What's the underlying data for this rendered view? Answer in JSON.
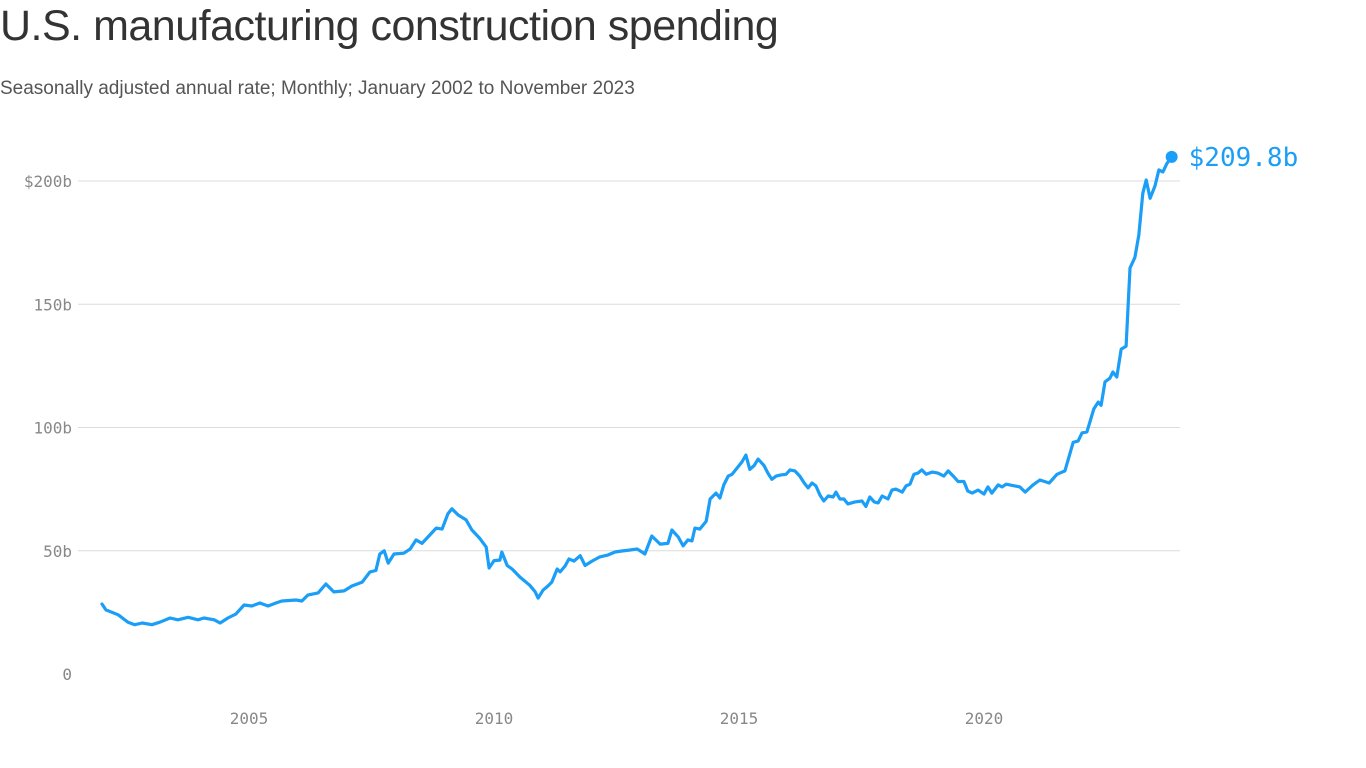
{
  "title": "U.S. manufacturing construction spending",
  "subtitle": "Seasonally adjusted annual rate; Monthly; January 2002 to November 2023",
  "chart_data": {
    "type": "line",
    "title": "U.S. manufacturing construction spending",
    "subtitle": "Seasonally adjusted annual rate; Monthly; January 2002 to November 2023",
    "xlabel": "",
    "ylabel": "",
    "xlim": [
      2002.0,
      2023.83
    ],
    "ylim": [
      0,
      200
    ],
    "grid": true,
    "color": "#1a9ef7",
    "y_ticks": [
      {
        "value": 0,
        "label": "0"
      },
      {
        "value": 50,
        "label": "50b"
      },
      {
        "value": 100,
        "label": "100b"
      },
      {
        "value": 150,
        "label": "150b"
      },
      {
        "value": 200,
        "label": "$200b"
      }
    ],
    "x_ticks": [
      {
        "value": 2005,
        "label": "2005"
      },
      {
        "value": 2010,
        "label": "2010"
      },
      {
        "value": 2015,
        "label": "2015"
      },
      {
        "value": 2020,
        "label": "2020"
      }
    ],
    "end_label": "$209.8b",
    "series": [
      {
        "points": [
          [
            2002.0,
            28.4
          ],
          [
            2002.08,
            26
          ],
          [
            2002.33,
            24
          ],
          [
            2002.53,
            21
          ],
          [
            2002.67,
            20
          ],
          [
            2002.82,
            20.7
          ],
          [
            2003.02,
            20
          ],
          [
            2003.18,
            21
          ],
          [
            2003.39,
            22.7
          ],
          [
            2003.55,
            22
          ],
          [
            2003.76,
            23
          ],
          [
            2003.96,
            22
          ],
          [
            2004.08,
            22.7
          ],
          [
            2004.29,
            22
          ],
          [
            2004.41,
            20.7
          ],
          [
            2004.57,
            22.7
          ],
          [
            2004.73,
            24.3
          ],
          [
            2004.9,
            28
          ],
          [
            2005.06,
            27.6
          ],
          [
            2005.22,
            28.8
          ],
          [
            2005.39,
            27.6
          ],
          [
            2005.55,
            28.8
          ],
          [
            2005.67,
            29.6
          ],
          [
            2005.96,
            30
          ],
          [
            2006.08,
            29.6
          ],
          [
            2006.2,
            32
          ],
          [
            2006.41,
            32.9
          ],
          [
            2006.57,
            36.5
          ],
          [
            2006.73,
            33.3
          ],
          [
            2006.94,
            33.7
          ],
          [
            2007.1,
            35.7
          ],
          [
            2007.31,
            37.3
          ],
          [
            2007.47,
            41.4
          ],
          [
            2007.59,
            42
          ],
          [
            2007.67,
            48.7
          ],
          [
            2007.76,
            50
          ],
          [
            2007.84,
            45
          ],
          [
            2007.96,
            48.7
          ],
          [
            2008.16,
            49
          ],
          [
            2008.29,
            50.7
          ],
          [
            2008.41,
            54.4
          ],
          [
            2008.53,
            53
          ],
          [
            2008.69,
            56.4
          ],
          [
            2008.82,
            59.2
          ],
          [
            2008.94,
            58.8
          ],
          [
            2009.06,
            65
          ],
          [
            2009.14,
            67
          ],
          [
            2009.27,
            64.5
          ],
          [
            2009.43,
            62.5
          ],
          [
            2009.55,
            58.4
          ],
          [
            2009.71,
            55
          ],
          [
            2009.84,
            51.5
          ],
          [
            2009.9,
            43
          ],
          [
            2010.0,
            46
          ],
          [
            2010.12,
            46.2
          ],
          [
            2010.16,
            49.5
          ],
          [
            2010.27,
            44
          ],
          [
            2010.37,
            42.6
          ],
          [
            2010.53,
            39.3
          ],
          [
            2010.73,
            36
          ],
          [
            2010.84,
            33.3
          ],
          [
            2010.9,
            30.8
          ],
          [
            2011.0,
            34
          ],
          [
            2011.1,
            35.7
          ],
          [
            2011.18,
            37.3
          ],
          [
            2011.29,
            42.6
          ],
          [
            2011.35,
            41.4
          ],
          [
            2011.45,
            43.8
          ],
          [
            2011.53,
            46.7
          ],
          [
            2011.63,
            45.8
          ],
          [
            2011.76,
            48
          ],
          [
            2011.86,
            44
          ],
          [
            2012.0,
            45.8
          ],
          [
            2012.16,
            47.5
          ],
          [
            2012.33,
            48.3
          ],
          [
            2012.47,
            49.5
          ],
          [
            2012.61,
            49.9
          ],
          [
            2012.78,
            50.3
          ],
          [
            2012.92,
            50.7
          ],
          [
            2013.02,
            49.5
          ],
          [
            2013.08,
            48.7
          ],
          [
            2013.22,
            56
          ],
          [
            2013.39,
            52.7
          ],
          [
            2013.55,
            53
          ],
          [
            2013.63,
            58.4
          ],
          [
            2013.76,
            55.6
          ],
          [
            2013.86,
            52
          ],
          [
            2013.96,
            54.4
          ],
          [
            2014.04,
            54
          ],
          [
            2014.1,
            59.2
          ],
          [
            2014.2,
            58.8
          ],
          [
            2014.33,
            62
          ],
          [
            2014.41,
            71
          ],
          [
            2014.53,
            73.4
          ],
          [
            2014.61,
            71.4
          ],
          [
            2014.69,
            76.7
          ],
          [
            2014.78,
            80.3
          ],
          [
            2014.86,
            81
          ],
          [
            2014.98,
            84
          ],
          [
            2015.06,
            86
          ],
          [
            2015.14,
            88.8
          ],
          [
            2015.22,
            83
          ],
          [
            2015.31,
            84.6
          ],
          [
            2015.39,
            87.2
          ],
          [
            2015.51,
            84.6
          ],
          [
            2015.59,
            81.5
          ],
          [
            2015.67,
            79
          ],
          [
            2015.76,
            80.3
          ],
          [
            2015.84,
            80.7
          ],
          [
            2015.96,
            81
          ],
          [
            2016.04,
            82.8
          ],
          [
            2016.14,
            82.4
          ],
          [
            2016.24,
            80.3
          ],
          [
            2016.33,
            77.5
          ],
          [
            2016.41,
            75.5
          ],
          [
            2016.49,
            77.5
          ],
          [
            2016.57,
            76.3
          ],
          [
            2016.65,
            72.6
          ],
          [
            2016.73,
            70.2
          ],
          [
            2016.82,
            72.2
          ],
          [
            2016.92,
            71.8
          ],
          [
            2016.98,
            73.8
          ],
          [
            2017.06,
            71
          ],
          [
            2017.14,
            71
          ],
          [
            2017.22,
            69
          ],
          [
            2017.37,
            69.8
          ],
          [
            2017.51,
            70.2
          ],
          [
            2017.59,
            68
          ],
          [
            2017.67,
            71.8
          ],
          [
            2017.76,
            69.8
          ],
          [
            2017.84,
            69.4
          ],
          [
            2017.92,
            72.2
          ],
          [
            2018.04,
            71
          ],
          [
            2018.12,
            74.6
          ],
          [
            2018.2,
            75
          ],
          [
            2018.33,
            73.8
          ],
          [
            2018.41,
            76.3
          ],
          [
            2018.49,
            77
          ],
          [
            2018.57,
            81
          ],
          [
            2018.65,
            81.5
          ],
          [
            2018.73,
            82.8
          ],
          [
            2018.82,
            81
          ],
          [
            2018.94,
            81.9
          ],
          [
            2019.06,
            81.5
          ],
          [
            2019.18,
            80.3
          ],
          [
            2019.27,
            82.4
          ],
          [
            2019.39,
            79.9
          ],
          [
            2019.47,
            78.1
          ],
          [
            2019.59,
            78.1
          ],
          [
            2019.67,
            74.2
          ],
          [
            2019.76,
            73.4
          ],
          [
            2019.88,
            74.6
          ],
          [
            2020.0,
            73
          ],
          [
            2020.08,
            75.9
          ],
          [
            2020.16,
            73.4
          ],
          [
            2020.29,
            76.7
          ],
          [
            2020.37,
            75.9
          ],
          [
            2020.45,
            77
          ],
          [
            2020.73,
            75.9
          ],
          [
            2020.84,
            73.8
          ],
          [
            2021.0,
            76.7
          ],
          [
            2021.14,
            78.7
          ],
          [
            2021.33,
            77.5
          ],
          [
            2021.49,
            81
          ],
          [
            2021.65,
            82.4
          ],
          [
            2021.82,
            94
          ],
          [
            2021.92,
            94.5
          ],
          [
            2022.0,
            97.8
          ],
          [
            2022.1,
            98.2
          ],
          [
            2022.24,
            107.5
          ],
          [
            2022.33,
            110.3
          ],
          [
            2022.39,
            109
          ],
          [
            2022.47,
            118.5
          ],
          [
            2022.57,
            120
          ],
          [
            2022.63,
            122.5
          ],
          [
            2022.71,
            120.5
          ],
          [
            2022.8,
            131.8
          ],
          [
            2022.9,
            133
          ],
          [
            2022.98,
            164.7
          ],
          [
            2023.08,
            169
          ],
          [
            2023.16,
            178
          ],
          [
            2023.24,
            195
          ],
          [
            2023.31,
            200.4
          ],
          [
            2023.39,
            193
          ],
          [
            2023.49,
            198
          ],
          [
            2023.57,
            204.5
          ],
          [
            2023.65,
            203.7
          ],
          [
            2023.73,
            207
          ],
          [
            2023.83,
            209.8
          ]
        ]
      }
    ]
  }
}
